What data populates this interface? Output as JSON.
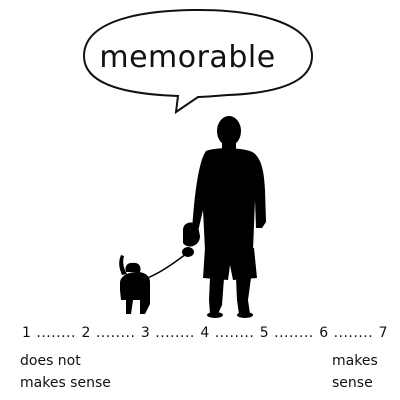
{
  "bubble": {
    "word": "memorable"
  },
  "illustration": {
    "icon": "man-walking-dog-silhouette-icon",
    "fill": "#000000"
  },
  "scale": {
    "points": [
      "1",
      "2",
      "3",
      "4",
      "5",
      "6",
      "7"
    ],
    "separator": "........",
    "low_anchor": [
      "does not",
      "makes sense"
    ],
    "high_anchor": [
      "makes",
      "sense"
    ]
  }
}
